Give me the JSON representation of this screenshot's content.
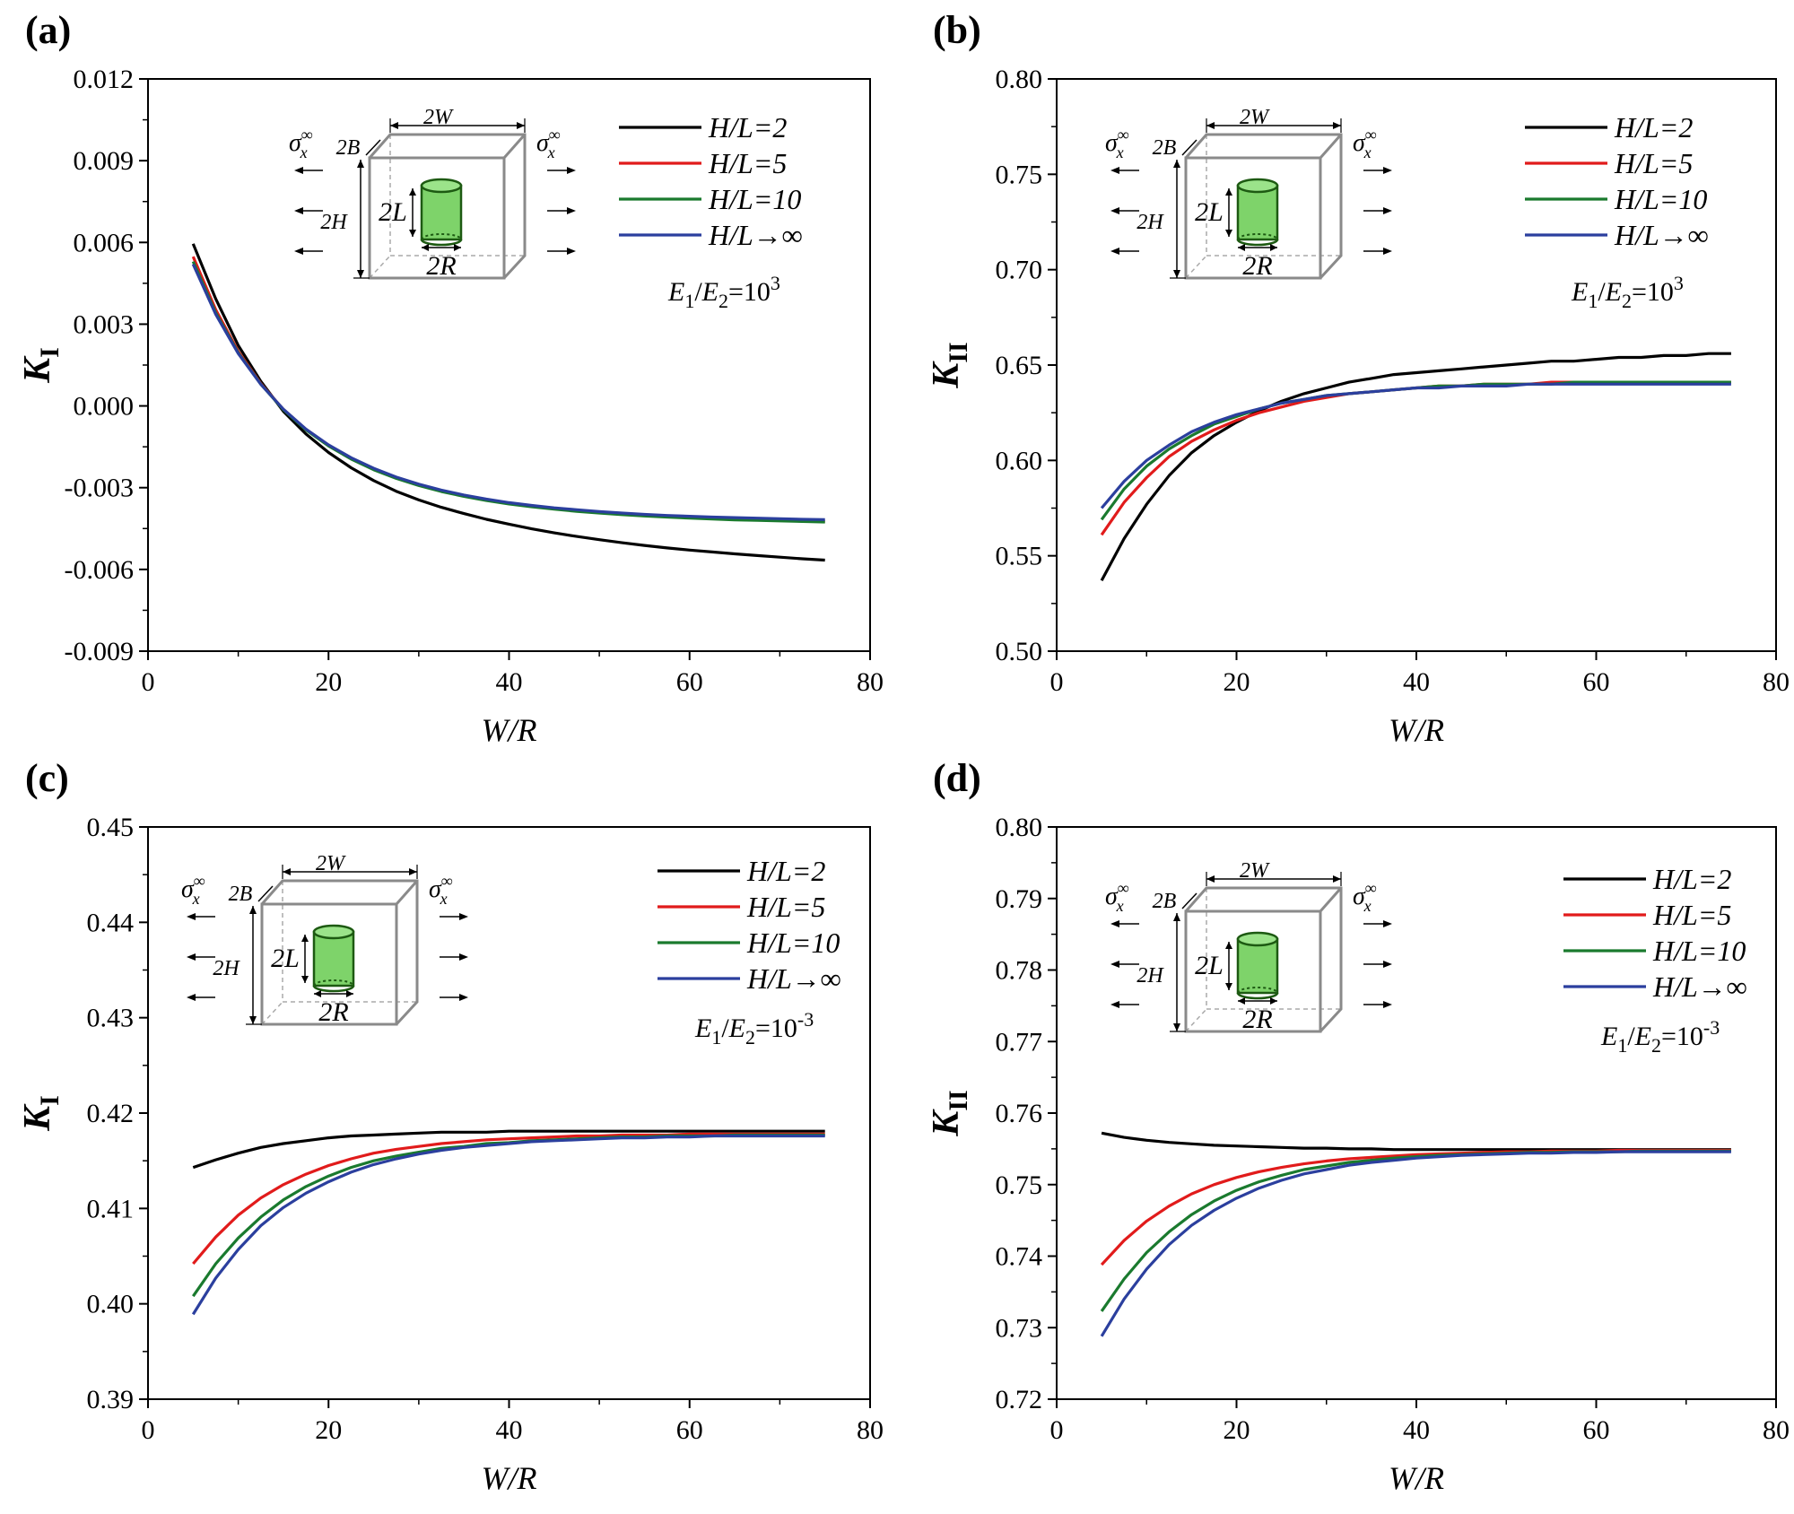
{
  "figure": {
    "inset": {
      "sigma": "σ",
      "sigma_sup": "∞",
      "sigma_sub": "x",
      "dim_w": "2W",
      "dim_b": "2B",
      "dim_h": "2H",
      "dim_l": "2L",
      "dim_r": "2R",
      "block_color": "#8a8a8a",
      "cylinder_color": "#7ed36a",
      "cylinder_edge": "#1d5a12"
    }
  },
  "chart_data": [
    {
      "id": "a",
      "type": "line",
      "panel_label": "(a)",
      "title": "",
      "xlabel": "W/R",
      "ylabel_main": "K",
      "ylabel_sub": "I",
      "xlim": [
        0,
        80
      ],
      "ylim": [
        -0.009,
        0.012
      ],
      "xticks": [
        0,
        20,
        40,
        60,
        80
      ],
      "xtick_labels": [
        "0",
        "20",
        "40",
        "60",
        "80"
      ],
      "yticks": [
        -0.009,
        -0.006,
        -0.003,
        0.0,
        0.003,
        0.006,
        0.009,
        0.012
      ],
      "ytick_labels": [
        "-0.009",
        "-0.006",
        "-0.003",
        "0.000",
        "0.003",
        "0.006",
        "0.009",
        "0.012"
      ],
      "grid": false,
      "legend_position": "top-right",
      "annotation": {
        "base": "E",
        "sub1": "1",
        "slash": "/",
        "base2": "E",
        "sub2": "2",
        "eq": "=10",
        "sup": "3"
      },
      "x": [
        5,
        7.5,
        10,
        12.5,
        15,
        17.5,
        20,
        22.5,
        25,
        27.5,
        30,
        32.5,
        35,
        37.5,
        40,
        42.5,
        45,
        47.5,
        50,
        52.5,
        55,
        57.5,
        60,
        62.5,
        65,
        67.5,
        70,
        72.5,
        75
      ],
      "series": [
        {
          "name": "H/L=2",
          "label_num": "H",
          "label_rest": "/L=2",
          "color": "#000000",
          "values": [
            0.00595,
            0.00393,
            0.00222,
            0.0009,
            -0.0002,
            -0.00103,
            -0.00171,
            -0.00227,
            -0.00274,
            -0.00313,
            -0.00345,
            -0.00372,
            -0.00395,
            -0.00416,
            -0.00434,
            -0.00451,
            -0.00466,
            -0.00479,
            -0.00491,
            -0.00502,
            -0.00512,
            -0.00521,
            -0.00529,
            -0.00536,
            -0.00543,
            -0.00549,
            -0.00555,
            -0.00561,
            -0.00566
          ]
        },
        {
          "name": "H/L=5",
          "label_num": "H",
          "label_rest": "/L=5",
          "color": "#e11b1b",
          "values": [
            0.00548,
            0.00353,
            0.002,
            0.00082,
            -0.00013,
            -0.00086,
            -0.00145,
            -0.00193,
            -0.00232,
            -0.00264,
            -0.0029,
            -0.00312,
            -0.0033,
            -0.00345,
            -0.00357,
            -0.00368,
            -0.00376,
            -0.00384,
            -0.00391,
            -0.00397,
            -0.00402,
            -0.00406,
            -0.0041,
            -0.00413,
            -0.00416,
            -0.00418,
            -0.0042,
            -0.00422,
            -0.00424
          ]
        },
        {
          "name": "H/L=10",
          "label_num": "H",
          "label_rest": "/L=10",
          "color": "#1a7a2e",
          "values": [
            0.0053,
            0.00342,
            0.00195,
            0.0008,
            -0.00014,
            -0.00088,
            -0.00147,
            -0.00195,
            -0.00234,
            -0.00266,
            -0.00292,
            -0.00314,
            -0.00332,
            -0.00347,
            -0.0036,
            -0.0037,
            -0.00379,
            -0.00387,
            -0.00393,
            -0.00399,
            -0.00404,
            -0.00408,
            -0.00412,
            -0.00415,
            -0.00418,
            -0.0042,
            -0.00422,
            -0.00424,
            -0.00426
          ]
        },
        {
          "name": "H/L→∞",
          "label_num": "H",
          "label_rest": "/L→∞",
          "color": "#2b3f9e",
          "values": [
            0.0052,
            0.00336,
            0.00192,
            0.00079,
            -0.00012,
            -0.00085,
            -0.00143,
            -0.0019,
            -0.00229,
            -0.00261,
            -0.00287,
            -0.00309,
            -0.00327,
            -0.00342,
            -0.00355,
            -0.00365,
            -0.00374,
            -0.00381,
            -0.00388,
            -0.00393,
            -0.00398,
            -0.00402,
            -0.00405,
            -0.00408,
            -0.0041,
            -0.00412,
            -0.00414,
            -0.00416,
            -0.00417
          ]
        }
      ]
    },
    {
      "id": "b",
      "type": "line",
      "panel_label": "(b)",
      "title": "",
      "xlabel": "W/R",
      "ylabel_main": "K",
      "ylabel_sub": "II",
      "xlim": [
        0,
        80
      ],
      "ylim": [
        0.5,
        0.8
      ],
      "xticks": [
        0,
        20,
        40,
        60,
        80
      ],
      "xtick_labels": [
        "0",
        "20",
        "40",
        "60",
        "80"
      ],
      "yticks": [
        0.5,
        0.55,
        0.6,
        0.65,
        0.7,
        0.75,
        0.8
      ],
      "ytick_labels": [
        "0.50",
        "0.55",
        "0.60",
        "0.65",
        "0.70",
        "0.75",
        "0.80"
      ],
      "grid": false,
      "legend_position": "top-right",
      "annotation": {
        "base": "E",
        "sub1": "1",
        "slash": "/",
        "base2": "E",
        "sub2": "2",
        "eq": "=10",
        "sup": "3"
      },
      "x": [
        5,
        7.5,
        10,
        12.5,
        15,
        17.5,
        20,
        22.5,
        25,
        27.5,
        30,
        32.5,
        35,
        37.5,
        40,
        42.5,
        45,
        47.5,
        50,
        52.5,
        55,
        57.5,
        60,
        62.5,
        65,
        67.5,
        70,
        72.5,
        75
      ],
      "series": [
        {
          "name": "H/L=2",
          "label_num": "H",
          "label_rest": "/L=2",
          "color": "#000000",
          "values": [
            0.537,
            0.559,
            0.577,
            0.592,
            0.604,
            0.613,
            0.62,
            0.626,
            0.631,
            0.635,
            0.638,
            0.641,
            0.643,
            0.645,
            0.646,
            0.647,
            0.648,
            0.649,
            0.65,
            0.651,
            0.652,
            0.652,
            0.653,
            0.654,
            0.654,
            0.655,
            0.655,
            0.656,
            0.656
          ]
        },
        {
          "name": "H/L=5",
          "label_num": "H",
          "label_rest": "/L=5",
          "color": "#e11b1b",
          "values": [
            0.561,
            0.578,
            0.591,
            0.602,
            0.61,
            0.616,
            0.621,
            0.625,
            0.628,
            0.631,
            0.633,
            0.635,
            0.636,
            0.637,
            0.638,
            0.639,
            0.639,
            0.64,
            0.64,
            0.64,
            0.641,
            0.641,
            0.641,
            0.641,
            0.641,
            0.641,
            0.641,
            0.641,
            0.641
          ]
        },
        {
          "name": "H/L=10",
          "label_num": "H",
          "label_rest": "/L=10",
          "color": "#1a7a2e",
          "values": [
            0.569,
            0.585,
            0.597,
            0.606,
            0.613,
            0.619,
            0.623,
            0.627,
            0.63,
            0.632,
            0.634,
            0.635,
            0.636,
            0.637,
            0.638,
            0.639,
            0.639,
            0.64,
            0.64,
            0.64,
            0.64,
            0.641,
            0.641,
            0.641,
            0.641,
            0.641,
            0.641,
            0.641,
            0.641
          ]
        },
        {
          "name": "H/L→∞",
          "label_num": "H",
          "label_rest": "/L→∞",
          "color": "#2b3f9e",
          "values": [
            0.575,
            0.589,
            0.6,
            0.608,
            0.615,
            0.62,
            0.624,
            0.627,
            0.63,
            0.632,
            0.634,
            0.635,
            0.636,
            0.637,
            0.638,
            0.638,
            0.639,
            0.639,
            0.639,
            0.64,
            0.64,
            0.64,
            0.64,
            0.64,
            0.64,
            0.64,
            0.64,
            0.64,
            0.64
          ]
        }
      ]
    },
    {
      "id": "c",
      "type": "line",
      "panel_label": "(c)",
      "title": "",
      "xlabel": "W/R",
      "ylabel_main": "K",
      "ylabel_sub": "I",
      "xlim": [
        0,
        80
      ],
      "ylim": [
        0.39,
        0.45
      ],
      "xticks": [
        0,
        20,
        40,
        60,
        80
      ],
      "xtick_labels": [
        "0",
        "20",
        "40",
        "60",
        "80"
      ],
      "yticks": [
        0.39,
        0.4,
        0.41,
        0.42,
        0.43,
        0.44,
        0.45
      ],
      "ytick_labels": [
        "0.39",
        "0.40",
        "0.41",
        "0.42",
        "0.43",
        "0.44",
        "0.45"
      ],
      "grid": false,
      "legend_position": "top-right",
      "annotation": {
        "base": "E",
        "sub1": "1",
        "slash": "/",
        "base2": "E",
        "sub2": "2",
        "eq": "=10",
        "sup": "-3"
      },
      "x": [
        5,
        7.5,
        10,
        12.5,
        15,
        17.5,
        20,
        22.5,
        25,
        27.5,
        30,
        32.5,
        35,
        37.5,
        40,
        42.5,
        45,
        47.5,
        50,
        52.5,
        55,
        57.5,
        60,
        62.5,
        65,
        67.5,
        70,
        72.5,
        75
      ],
      "series": [
        {
          "name": "H/L=2",
          "label_num": "H",
          "label_rest": "/L=2",
          "color": "#000000",
          "values": [
            0.4143,
            0.4151,
            0.4158,
            0.4164,
            0.4168,
            0.4171,
            0.4174,
            0.4176,
            0.4177,
            0.4178,
            0.4179,
            0.418,
            0.418,
            0.418,
            0.4181,
            0.4181,
            0.4181,
            0.4181,
            0.4181,
            0.4181,
            0.4181,
            0.4181,
            0.4181,
            0.4181,
            0.4181,
            0.4181,
            0.4181,
            0.4181,
            0.4181
          ]
        },
        {
          "name": "H/L=5",
          "label_num": "H",
          "label_rest": "/L=5",
          "color": "#e11b1b",
          "values": [
            0.4042,
            0.407,
            0.4093,
            0.4111,
            0.4125,
            0.4136,
            0.4145,
            0.4152,
            0.4158,
            0.4162,
            0.4165,
            0.4168,
            0.417,
            0.4172,
            0.4173,
            0.4174,
            0.4175,
            0.4176,
            0.4176,
            0.4177,
            0.4177,
            0.4177,
            0.4178,
            0.4178,
            0.4178,
            0.4178,
            0.4178,
            0.4178,
            0.4178
          ]
        },
        {
          "name": "H/L=10",
          "label_num": "H",
          "label_rest": "/L=10",
          "color": "#1a7a2e",
          "values": [
            0.4008,
            0.4042,
            0.4069,
            0.4091,
            0.4109,
            0.4123,
            0.4134,
            0.4143,
            0.415,
            0.4155,
            0.4159,
            0.4163,
            0.4165,
            0.4168,
            0.4169,
            0.4171,
            0.4172,
            0.4173,
            0.4174,
            0.4175,
            0.4175,
            0.4176,
            0.4176,
            0.4176,
            0.4177,
            0.4177,
            0.4177,
            0.4177,
            0.4177
          ]
        },
        {
          "name": "H/L→∞",
          "label_num": "H",
          "label_rest": "/L→∞",
          "color": "#2b3f9e",
          "values": [
            0.3989,
            0.4027,
            0.4057,
            0.4082,
            0.4101,
            0.4116,
            0.4128,
            0.4138,
            0.4146,
            0.4152,
            0.4157,
            0.4161,
            0.4164,
            0.4166,
            0.4168,
            0.417,
            0.4171,
            0.4172,
            0.4173,
            0.4174,
            0.4174,
            0.4175,
            0.4175,
            0.4176,
            0.4176,
            0.4176,
            0.4176,
            0.4176,
            0.4176
          ]
        }
      ]
    },
    {
      "id": "d",
      "type": "line",
      "panel_label": "(d)",
      "title": "",
      "xlabel": "W/R",
      "ylabel_main": "K",
      "ylabel_sub": "II",
      "xlim": [
        0,
        80
      ],
      "ylim": [
        0.72,
        0.8
      ],
      "xticks": [
        0,
        20,
        40,
        60,
        80
      ],
      "xtick_labels": [
        "0",
        "20",
        "40",
        "60",
        "80"
      ],
      "yticks": [
        0.72,
        0.73,
        0.74,
        0.75,
        0.76,
        0.77,
        0.78,
        0.79,
        0.8
      ],
      "ytick_labels": [
        "0.72",
        "0.73",
        "0.74",
        "0.75",
        "0.76",
        "0.77",
        "0.78",
        "0.79",
        "0.80"
      ],
      "grid": false,
      "legend_position": "top-right",
      "annotation": {
        "base": "E",
        "sub1": "1",
        "slash": "/",
        "base2": "E",
        "sub2": "2",
        "eq": "=10",
        "sup": "-3"
      },
      "x": [
        5,
        7.5,
        10,
        12.5,
        15,
        17.5,
        20,
        22.5,
        25,
        27.5,
        30,
        32.5,
        35,
        37.5,
        40,
        42.5,
        45,
        47.5,
        50,
        52.5,
        55,
        57.5,
        60,
        62.5,
        65,
        67.5,
        70,
        72.5,
        75
      ],
      "series": [
        {
          "name": "H/L=2",
          "label_num": "H",
          "label_rest": "/L=2",
          "color": "#000000",
          "values": [
            0.7572,
            0.7566,
            0.7562,
            0.7559,
            0.7557,
            0.7555,
            0.7554,
            0.7553,
            0.7552,
            0.7551,
            0.7551,
            0.755,
            0.755,
            0.7549,
            0.7549,
            0.7549,
            0.7549,
            0.7549,
            0.7549,
            0.7549,
            0.7549,
            0.7549,
            0.7549,
            0.7549,
            0.7549,
            0.7549,
            0.7549,
            0.7549,
            0.7549
          ]
        },
        {
          "name": "H/L=5",
          "label_num": "H",
          "label_rest": "/L=5",
          "color": "#e11b1b",
          "values": [
            0.7388,
            0.7422,
            0.7449,
            0.747,
            0.7487,
            0.75,
            0.751,
            0.7518,
            0.7524,
            0.7529,
            0.7533,
            0.7536,
            0.7538,
            0.754,
            0.7542,
            0.7543,
            0.7544,
            0.7545,
            0.7546,
            0.7546,
            0.7547,
            0.7547,
            0.7547,
            0.7548,
            0.7548,
            0.7548,
            0.7548,
            0.7548,
            0.7548
          ]
        },
        {
          "name": "H/L=10",
          "label_num": "H",
          "label_rest": "/L=10",
          "color": "#1a7a2e",
          "values": [
            0.7323,
            0.7368,
            0.7405,
            0.7434,
            0.7458,
            0.7477,
            0.7492,
            0.7504,
            0.7513,
            0.7521,
            0.7526,
            0.7531,
            0.7534,
            0.7537,
            0.7539,
            0.7541,
            0.7542,
            0.7543,
            0.7544,
            0.7545,
            0.7545,
            0.7546,
            0.7546,
            0.7546,
            0.7547,
            0.7547,
            0.7547,
            0.7547,
            0.7547
          ]
        },
        {
          "name": "H/L→∞",
          "label_num": "H",
          "label_rest": "/L→∞",
          "color": "#2b3f9e",
          "values": [
            0.7288,
            0.734,
            0.7382,
            0.7416,
            0.7443,
            0.7464,
            0.7481,
            0.7495,
            0.7506,
            0.7515,
            0.7521,
            0.7527,
            0.7531,
            0.7534,
            0.7537,
            0.7539,
            0.7541,
            0.7542,
            0.7543,
            0.7544,
            0.7544,
            0.7545,
            0.7545,
            0.7546,
            0.7546,
            0.7546,
            0.7546,
            0.7546,
            0.7546
          ]
        }
      ]
    }
  ]
}
